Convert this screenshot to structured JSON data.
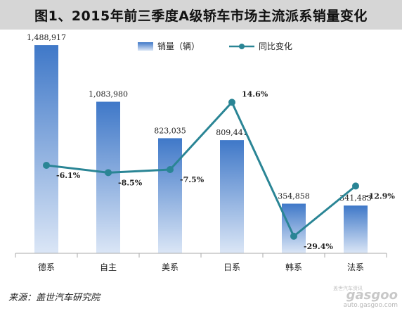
{
  "chart_data": {
    "type": "bar",
    "title": "图1、2015年前三季度A级轿车市场主流派系销量变化",
    "categories": [
      "德系",
      "自主",
      "美系",
      "日系",
      "韩系",
      "法系"
    ],
    "series": [
      {
        "name": "销量（辆）",
        "type": "bar",
        "values": [
          1488917,
          1083980,
          823035,
          809441,
          354858,
          341483
        ],
        "labels": [
          "1,488,917",
          "1,083,980",
          "823,035",
          "809,441",
          "354,858",
          "341,483"
        ]
      },
      {
        "name": "同比变化",
        "type": "line",
        "values": [
          -6.1,
          -8.5,
          -7.5,
          14.6,
          -29.4,
          -12.9
        ],
        "labels": [
          "-6.1%",
          "-8.5%",
          "-7.5%",
          "14.6%",
          "-29.4%",
          "-12.9%"
        ]
      }
    ],
    "ylim": [
      0,
      1600000
    ],
    "y2lim": [
      -35,
      20
    ],
    "grid": false,
    "legend": "top-center",
    "colors": {
      "bar_top": "#3f78c8",
      "bar_bottom": "#dbe6f6",
      "line": "#2a8595",
      "axis": "#aaaaaa"
    }
  },
  "source": "来源：盖世汽车研究院",
  "watermark": {
    "name": "gasgoo",
    "cn": "盖世汽车资讯",
    "url": "auto.gasgoo.com"
  }
}
